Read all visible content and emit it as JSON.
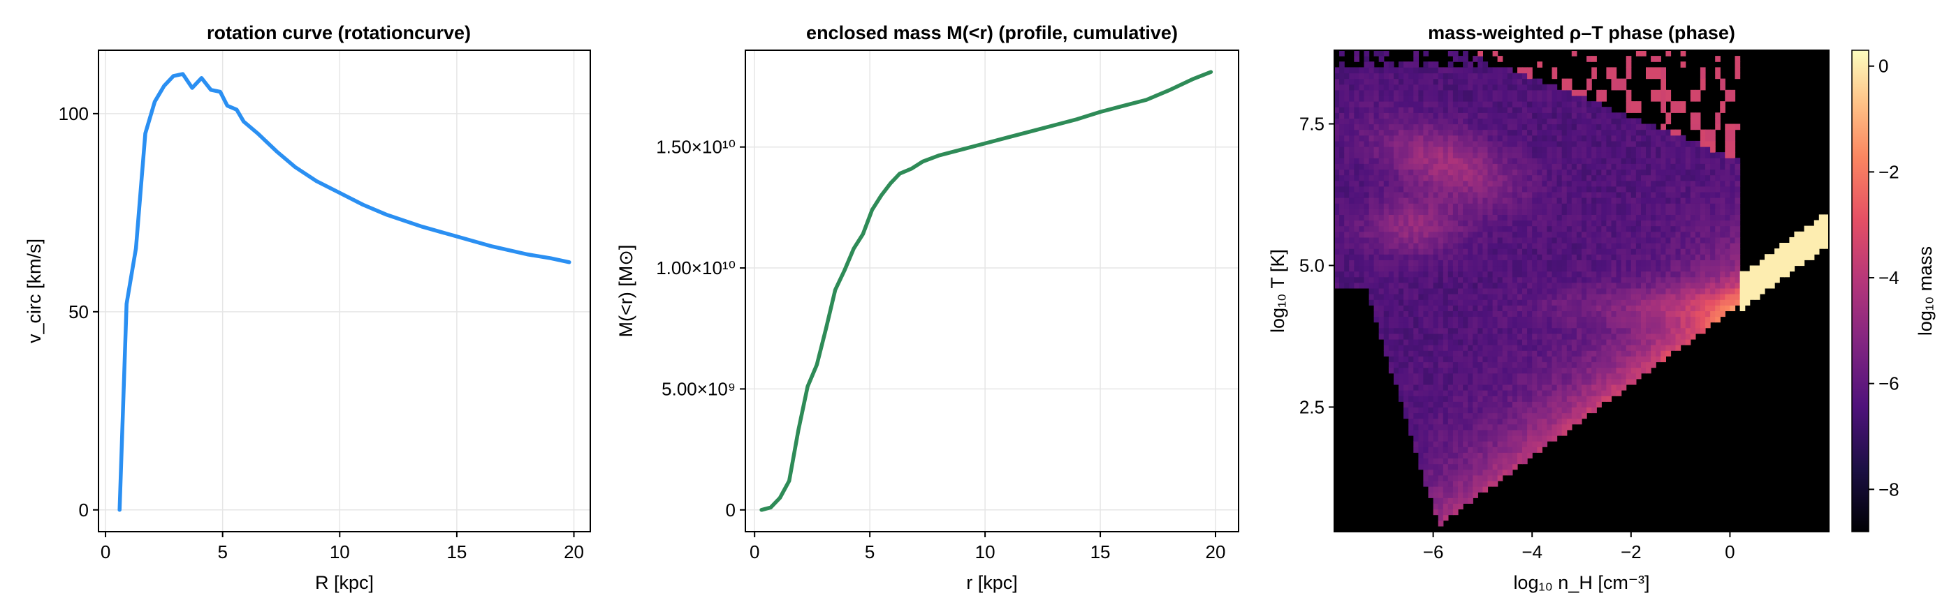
{
  "chart_data": [
    {
      "type": "line",
      "title": "rotation curve  (rotationcurve)",
      "xlabel": "R [kpc]",
      "ylabel": "v_circ [km/s]",
      "xlim": [
        -0.3,
        20.7
      ],
      "ylim": [
        -5.5,
        116
      ],
      "xticks": [
        0,
        5,
        10,
        15,
        20
      ],
      "xtick_labels": [
        "0",
        "5",
        "10",
        "15",
        "20"
      ],
      "yticks": [
        0,
        50,
        100
      ],
      "ytick_labels": [
        "0",
        "50",
        "100"
      ],
      "grid": true,
      "color": "#2a8ff2",
      "series": [
        {
          "x": [
            0.6,
            0.9,
            1.3,
            1.7,
            2.1,
            2.5,
            2.9,
            3.3,
            3.7,
            4.1,
            4.5,
            4.9,
            5.2,
            5.6,
            5.9,
            6.5,
            7.3,
            8.1,
            9.0,
            10.0,
            11.0,
            12.0,
            13.5,
            15.0,
            16.5,
            18.0,
            19.0,
            19.8
          ],
          "y": [
            0,
            52,
            66,
            95,
            103,
            107,
            109.5,
            110,
            106.5,
            109,
            106,
            105.5,
            102,
            101,
            98,
            95,
            90.5,
            86.5,
            83,
            80,
            77,
            74.5,
            71.5,
            69,
            66.5,
            64.5,
            63.5,
            62.5
          ]
        }
      ]
    },
    {
      "type": "line",
      "title": "enclosed mass M(<r)  (profile, cumulative)",
      "xlabel": "r [kpc]",
      "ylabel": "M(<r) [M⊙]",
      "xlim": [
        -0.4,
        21.0
      ],
      "ylim": [
        -900000000.0,
        19000000000.0
      ],
      "xticks": [
        0,
        5,
        10,
        15,
        20
      ],
      "xtick_labels": [
        "0",
        "5",
        "10",
        "15",
        "20"
      ],
      "yticks": [
        0,
        5000000000.0,
        10000000000.0,
        15000000000.0
      ],
      "ytick_labels": [
        "0",
        "5.00×10⁹",
        "1.00×10¹⁰",
        "1.50×10¹⁰"
      ],
      "grid": true,
      "color": "#2e8b57",
      "series": [
        {
          "x": [
            0.3,
            0.7,
            1.1,
            1.5,
            1.9,
            2.3,
            2.7,
            3.1,
            3.5,
            3.9,
            4.3,
            4.7,
            5.1,
            5.5,
            5.9,
            6.3,
            6.8,
            7.3,
            8,
            9,
            10,
            11,
            12,
            13,
            14,
            15,
            16,
            17,
            18,
            19,
            19.8
          ],
          "y": [
            0,
            100000000.0,
            500000000.0,
            1200000000.0,
            3300000000.0,
            5100000000.0,
            6000000000.0,
            7500000000.0,
            9100000000.0,
            9900000000.0,
            10800000000.0,
            11400000000.0,
            12400000000.0,
            13000000000.0,
            13500000000.0,
            13900000000.0,
            14100000000.0,
            14400000000.0,
            14650000000.0,
            14900000000.0,
            15150000000.0,
            15400000000.0,
            15650000000.0,
            15900000000.0,
            16150000000.0,
            16450000000.0,
            16700000000.0,
            16950000000.0,
            17350000000.0,
            17800000000.0,
            18100000000.0
          ]
        }
      ]
    },
    {
      "type": "heatmap",
      "title": "mass-weighted ρ–T phase  (phase)",
      "xlabel": "log₁₀ n_H [cm⁻³]",
      "ylabel": "log₁₀ T [K]",
      "xlim": [
        -8.0,
        2.0
      ],
      "ylim": [
        0.3,
        8.8
      ],
      "xticks": [
        -6,
        -4,
        -2,
        0
      ],
      "xtick_labels": [
        "−6",
        "−4",
        "−2",
        "0"
      ],
      "yticks": [
        2.5,
        5.0,
        7.5
      ],
      "ytick_labels": [
        "2.5",
        "5.0",
        "7.5"
      ],
      "background": "#000000",
      "colorbar": {
        "label": "log₁₀ mass",
        "range": [
          -8.8,
          0.3
        ],
        "ticks": [
          0,
          -2,
          -4,
          -6,
          -8
        ],
        "tick_labels": [
          "0",
          "−2",
          "−4",
          "−6",
          "−8"
        ],
        "colormap": "magma"
      }
    }
  ]
}
